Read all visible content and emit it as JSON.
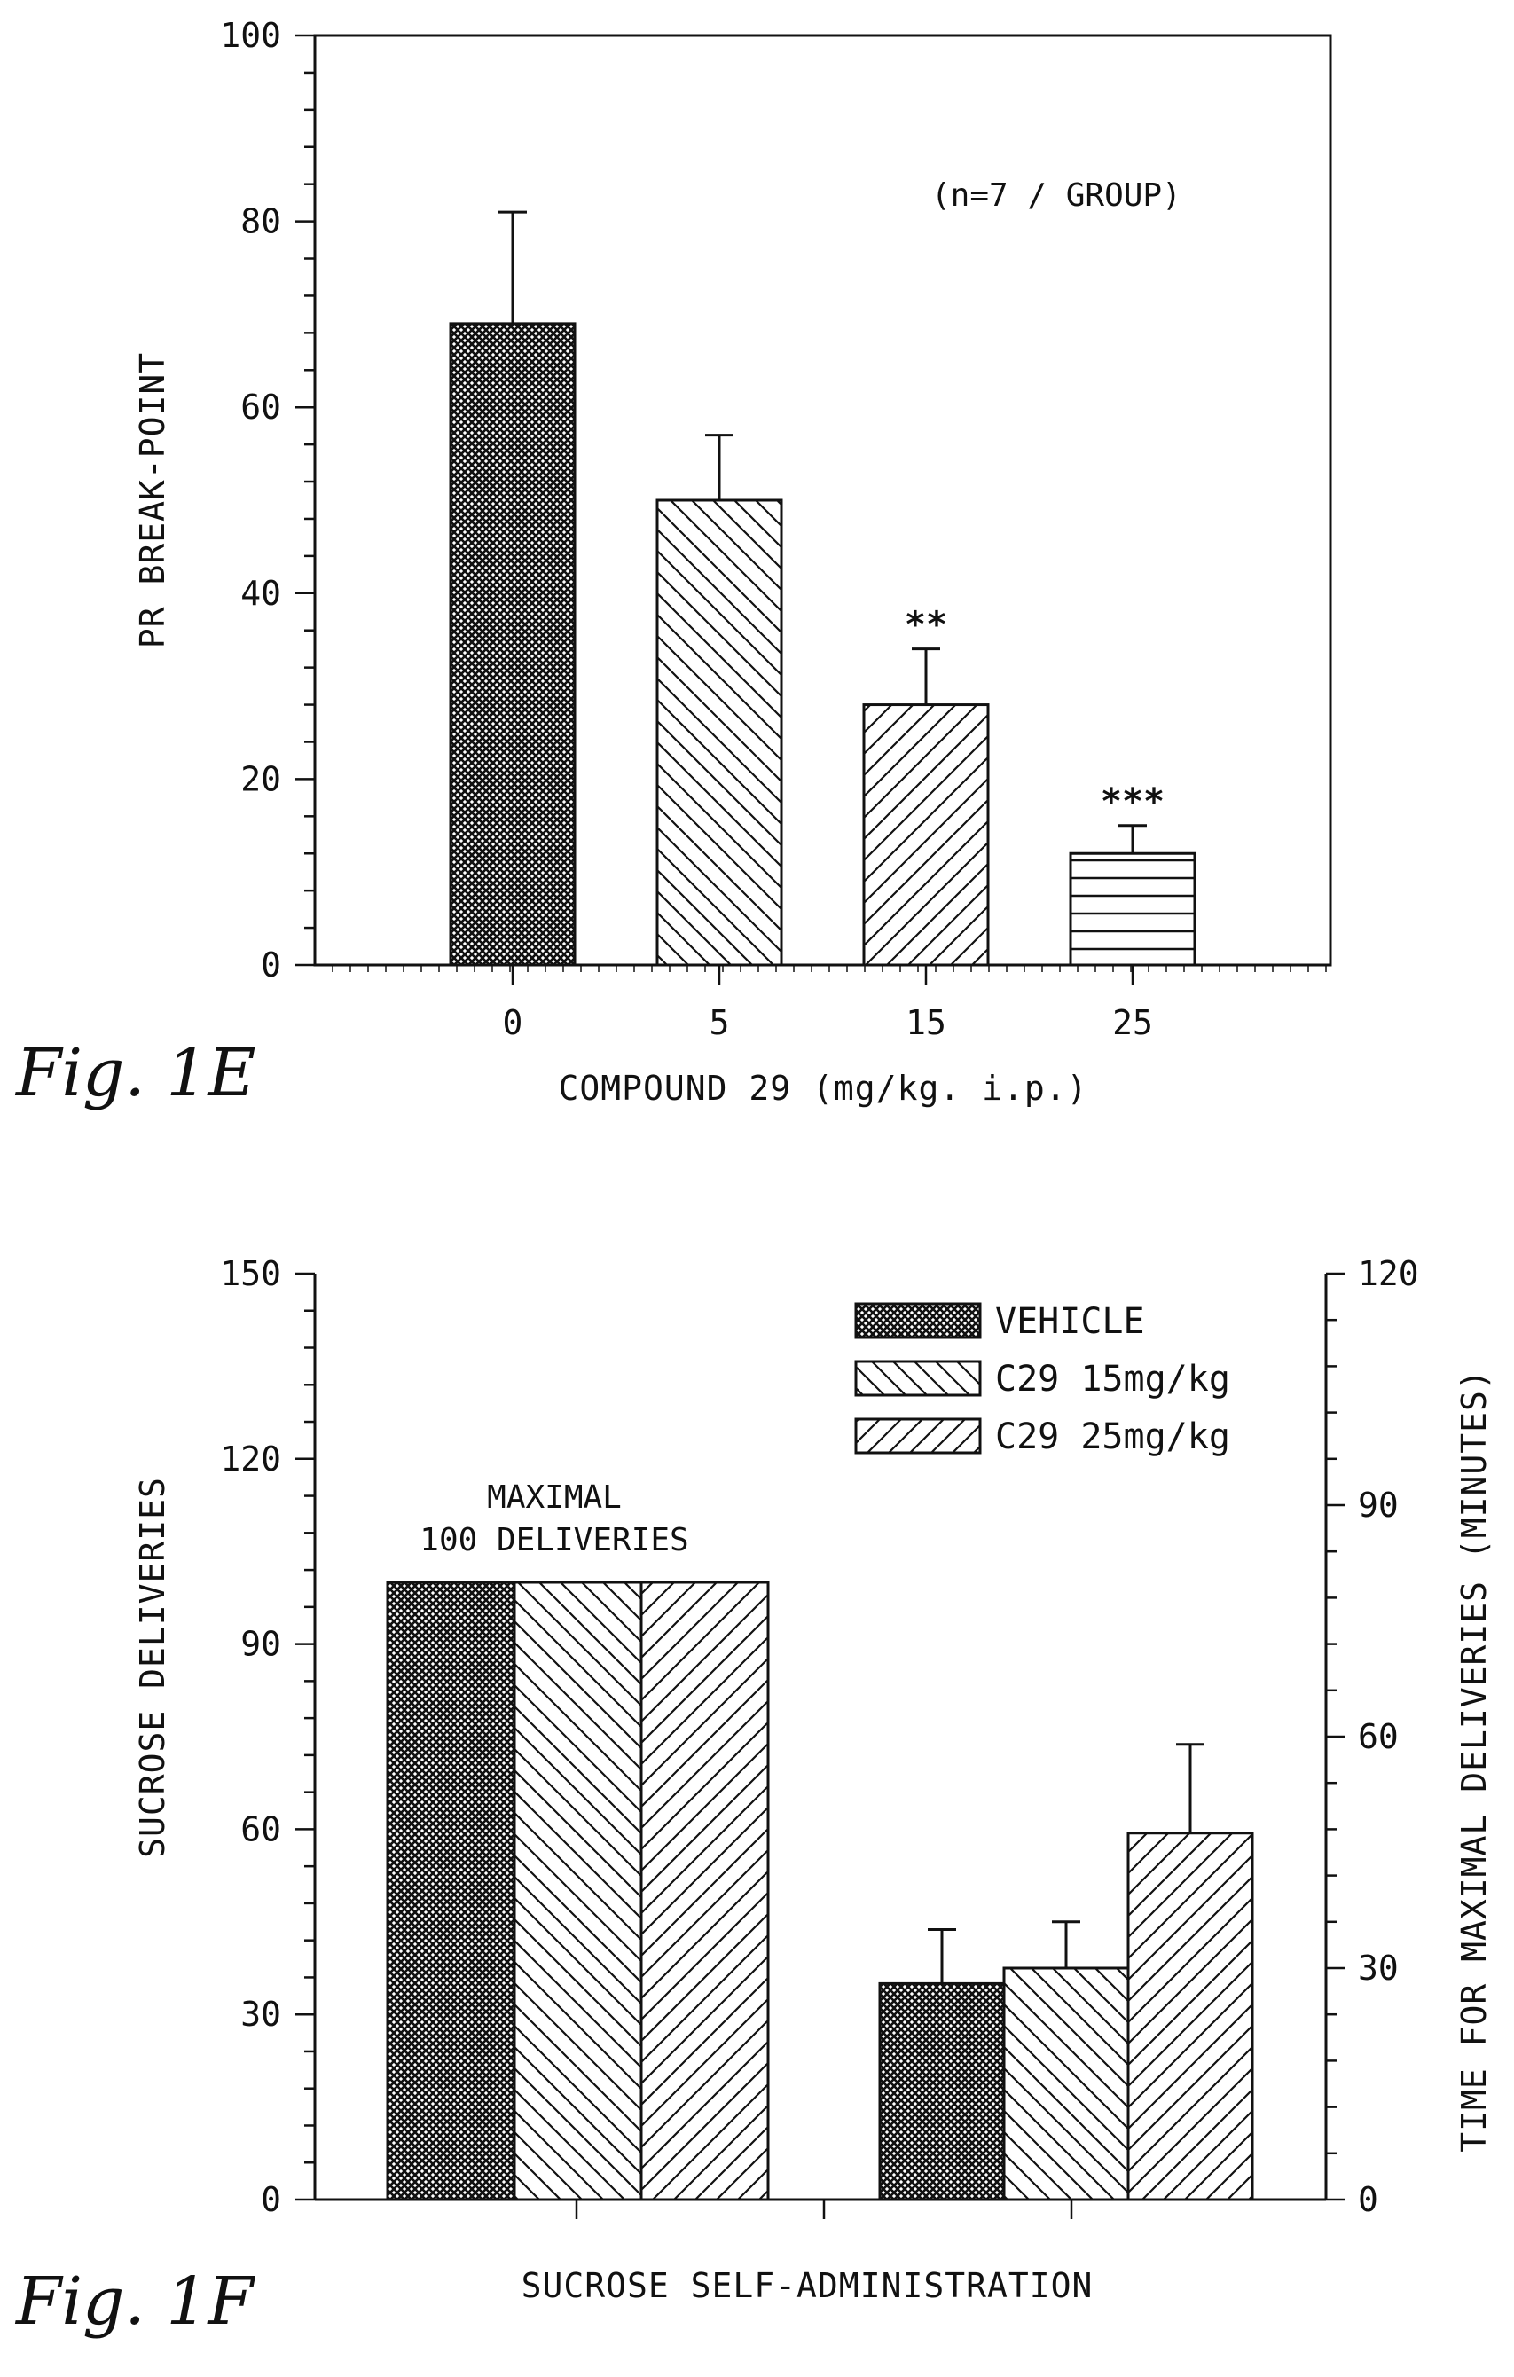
{
  "figures": [
    {
      "fig_label": "Fig. 1E",
      "annotation": "(n=7 / GROUP)"
    },
    {
      "fig_label": "Fig. 1F",
      "bar_label_line1": "MAXIMAL",
      "bar_label_line2": "100 DELIVERIES"
    }
  ],
  "chart_data": [
    {
      "type": "bar",
      "xlabel": "COMPOUND 29 (mg/kg. i.p.)",
      "ylabel": "PR BREAK-POINT",
      "ylim": [
        0,
        100
      ],
      "yticks": [
        0,
        20,
        40,
        60,
        80,
        100
      ],
      "categories": [
        "0",
        "5",
        "15",
        "25"
      ],
      "values": [
        69,
        50,
        28,
        12
      ],
      "errors": [
        12,
        7,
        6,
        3
      ],
      "significance": [
        "",
        "",
        "**",
        "***"
      ],
      "patterns": [
        "crosshatch",
        "diag-down",
        "diag-up",
        "horizontal"
      ],
      "grid": false
    },
    {
      "type": "bar",
      "xlabel": "SUCROSE SELF-ADMINISTRATION",
      "ylabel": "SUCROSE DELIVERIES",
      "ylabel_right": "TIME FOR MAXIMAL DELIVERIES (MINUTES)",
      "ylim": [
        0,
        150
      ],
      "yticks": [
        0,
        30,
        60,
        90,
        120,
        150
      ],
      "ylim_right": [
        0,
        120
      ],
      "yticks_right": [
        0,
        30,
        60,
        90,
        120
      ],
      "legend_position": "top-right",
      "groups": [
        "deliveries",
        "time"
      ],
      "series": [
        {
          "name": "VEHICLE",
          "pattern": "crosshatch",
          "values": [
            100,
            28
          ],
          "errors": [
            0,
            7
          ]
        },
        {
          "name": "C29 15mg/kg",
          "pattern": "diag-down",
          "values": [
            100,
            30
          ],
          "errors": [
            0,
            6
          ]
        },
        {
          "name": "C29 25mg/kg",
          "pattern": "diag-up",
          "values": [
            100,
            47.5
          ],
          "errors": [
            0,
            11.5
          ]
        }
      ],
      "grid": false
    }
  ]
}
